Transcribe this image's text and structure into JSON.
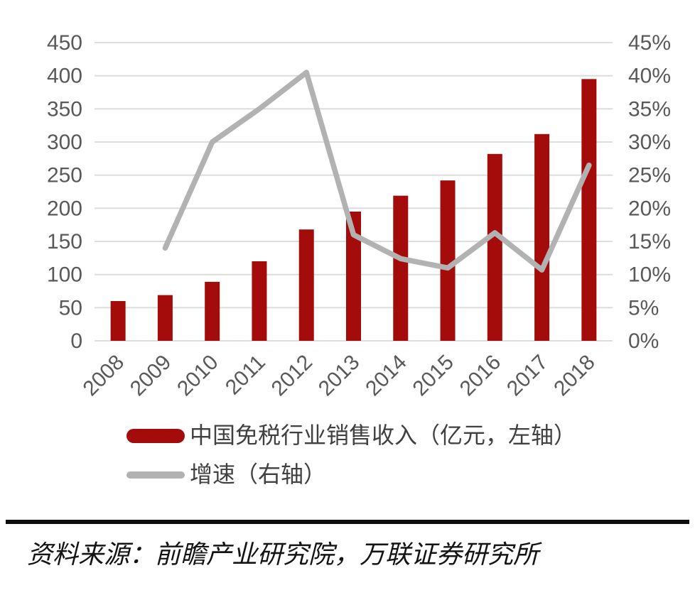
{
  "chart_data": {
    "type": "bar",
    "subtype": "dual-axis-bar-line-combo",
    "title": "",
    "categories": [
      "2008",
      "2009",
      "2010",
      "2011",
      "2012",
      "2013",
      "2014",
      "2015",
      "2016",
      "2017",
      "2018"
    ],
    "series": [
      {
        "name": "中国免税行业销售收入（亿元，左轴）",
        "type": "bar",
        "axis": "left",
        "color": "#A40C0C",
        "values": [
          60,
          69,
          89,
          120,
          168,
          195,
          219,
          242,
          282,
          312,
          395
        ]
      },
      {
        "name": "增速（右轴）",
        "type": "line",
        "axis": "right",
        "color": "#B2B2B2",
        "values": [
          null,
          14,
          30,
          35,
          40.5,
          16,
          12.4,
          11,
          16.3,
          10.7,
          26.5
        ]
      }
    ],
    "left_axis": {
      "min": 0,
      "max": 450,
      "step": 50,
      "tick_labels": [
        "0",
        "50",
        "100",
        "150",
        "200",
        "250",
        "300",
        "350",
        "400",
        "450"
      ]
    },
    "right_axis": {
      "min": 0,
      "max": 45,
      "step": 5,
      "tick_labels": [
        "0%",
        "5%",
        "10%",
        "15%",
        "20%",
        "25%",
        "30%",
        "35%",
        "40%",
        "45%"
      ]
    },
    "grid": true,
    "legend_position": "bottom-left",
    "xlabel": "",
    "ylabel": ""
  },
  "legend": {
    "items": [
      {
        "label": "中国免税行业销售收入（亿元，左轴）",
        "swatch": "bar-capsule",
        "color": "#A40C0C"
      },
      {
        "label": "增速（右轴）",
        "swatch": "line-capsule",
        "color": "#B2B2B2"
      }
    ]
  },
  "source": {
    "text": "资料来源：前瞻产业研究院，万联证券研究所"
  },
  "colors": {
    "bar": "#A40C0C",
    "line": "#B2B2B2",
    "grid": "#D9D9D9",
    "axis_text": "#595959",
    "divider": "#0D0D0D"
  }
}
